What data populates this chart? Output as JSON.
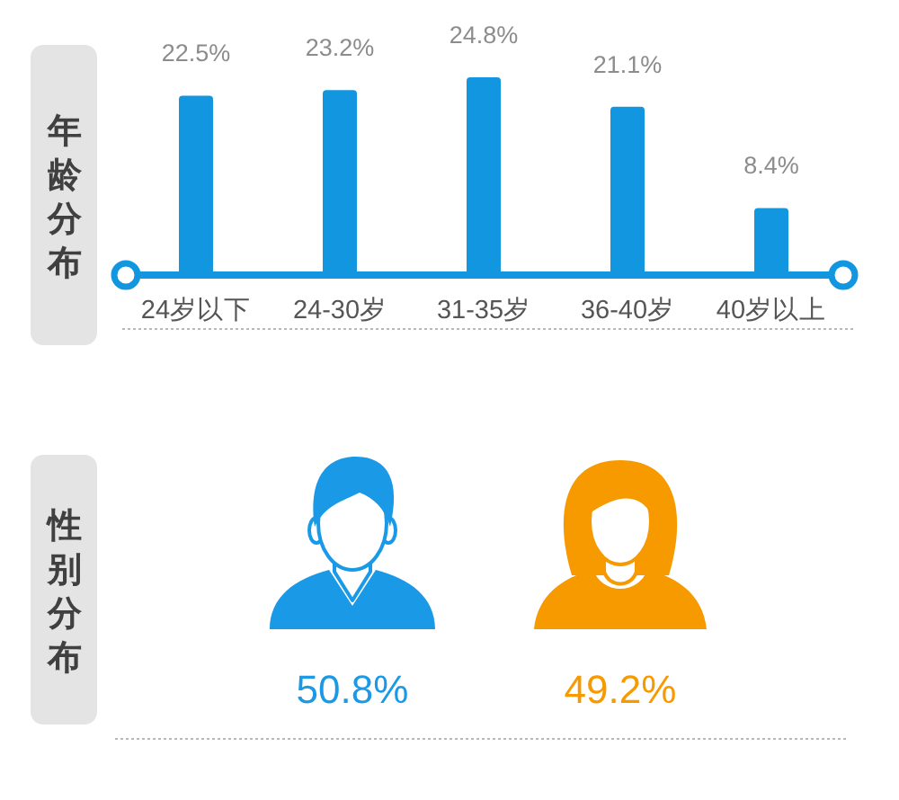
{
  "chart_data": [
    {
      "type": "bar",
      "title": "年龄分布",
      "categories": [
        "24岁以下",
        "24-30岁",
        "31-35岁",
        "36-40岁",
        "40岁以上"
      ],
      "values": [
        22.5,
        23.2,
        24.8,
        21.1,
        8.4
      ],
      "value_labels": [
        "22.5%",
        "23.2%",
        "24.8%",
        "21.1%",
        "8.4%"
      ],
      "color": "#1296e0"
    },
    {
      "type": "other",
      "title": "性别分布",
      "categories": [
        null,
        null
      ],
      "values": [
        50.8,
        49.2
      ],
      "value_labels": [
        "50.8%",
        "49.2%"
      ],
      "colors": [
        "#1a9ae6",
        "#f79a00"
      ]
    }
  ]
}
